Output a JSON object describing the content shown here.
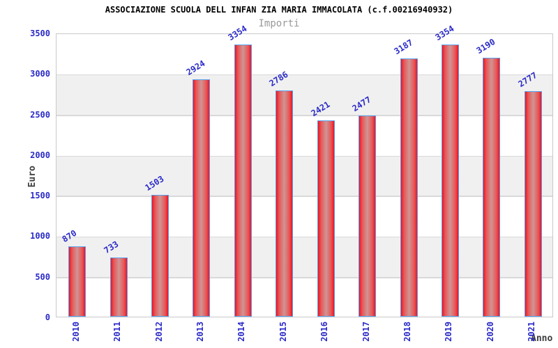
{
  "chart_data": {
    "type": "bar",
    "title": "ASSOCIAZIONE SCUOLA DELL INFAN ZIA MARIA IMMACOLATA (c.f.00216940932)",
    "subtitle": "Importi",
    "xlabel": "Anno",
    "ylabel": "Euro",
    "categories": [
      "2010",
      "2011",
      "2012",
      "2013",
      "2014",
      "2015",
      "2016",
      "2017",
      "2018",
      "2019",
      "2020",
      "2021"
    ],
    "values": [
      870,
      733,
      1503,
      2924,
      3354,
      2786,
      2421,
      2477,
      3187,
      3354,
      3190,
      2777
    ],
    "ylim": [
      0,
      3500
    ],
    "ytick_step": 500,
    "yticks": [
      0,
      500,
      1000,
      1500,
      2000,
      2500,
      3000,
      3500
    ],
    "legend": "none",
    "grid": "horizontal-bands",
    "colors": {
      "title": "#000000",
      "subtitle": "#999999",
      "axis_title": "#3d3d3d",
      "label_blue": "#2a2ac8",
      "band": "#f0f0f0",
      "gridline": "#d9d9d9",
      "plot_border": "#c9c9c9",
      "bar_border": "#55a0ee",
      "bar_fill_edge": "#ee1322",
      "bar_fill_mid": "#e85555",
      "bar_fill_center": "#d09494"
    }
  }
}
